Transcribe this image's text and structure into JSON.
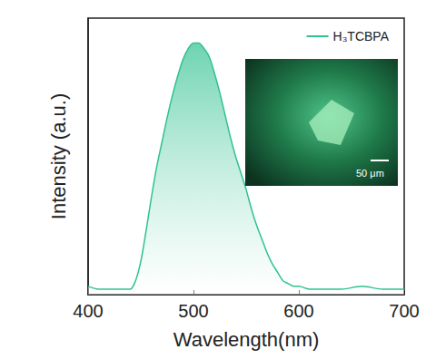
{
  "chart_data": {
    "type": "area",
    "x_label": "Wavelength(nm)",
    "y_label": "Intensity (a.u.)",
    "series": [
      {
        "name": "H₃TCBPA",
        "color": "#2fc190",
        "x": [
          400,
          410,
          420,
          430,
          440,
          445,
          450,
          455,
          460,
          465,
          470,
          475,
          480,
          485,
          490,
          495,
          500,
          505,
          510,
          515,
          520,
          525,
          530,
          535,
          540,
          545,
          550,
          555,
          560,
          565,
          570,
          575,
          580,
          585,
          590,
          595,
          600,
          610,
          620,
          640,
          660,
          680,
          700
        ],
        "values": [
          0.03,
          0.02,
          0.02,
          0.02,
          0.02,
          0.05,
          0.12,
          0.23,
          0.35,
          0.46,
          0.55,
          0.64,
          0.72,
          0.79,
          0.85,
          0.89,
          0.91,
          0.91,
          0.89,
          0.86,
          0.8,
          0.73,
          0.65,
          0.57,
          0.5,
          0.44,
          0.38,
          0.31,
          0.25,
          0.2,
          0.15,
          0.11,
          0.08,
          0.05,
          0.04,
          0.03,
          0.03,
          0.02,
          0.02,
          0.02,
          0.03,
          0.02,
          0.02
        ]
      }
    ],
    "xlim": [
      400,
      700
    ],
    "xticks": [
      400,
      500,
      600,
      700
    ],
    "ylim": [
      0,
      1
    ],
    "tick_labels": "x",
    "legend": "upper right",
    "grid": false,
    "annotations": [
      {
        "text": "50 μm"
      }
    ]
  }
}
